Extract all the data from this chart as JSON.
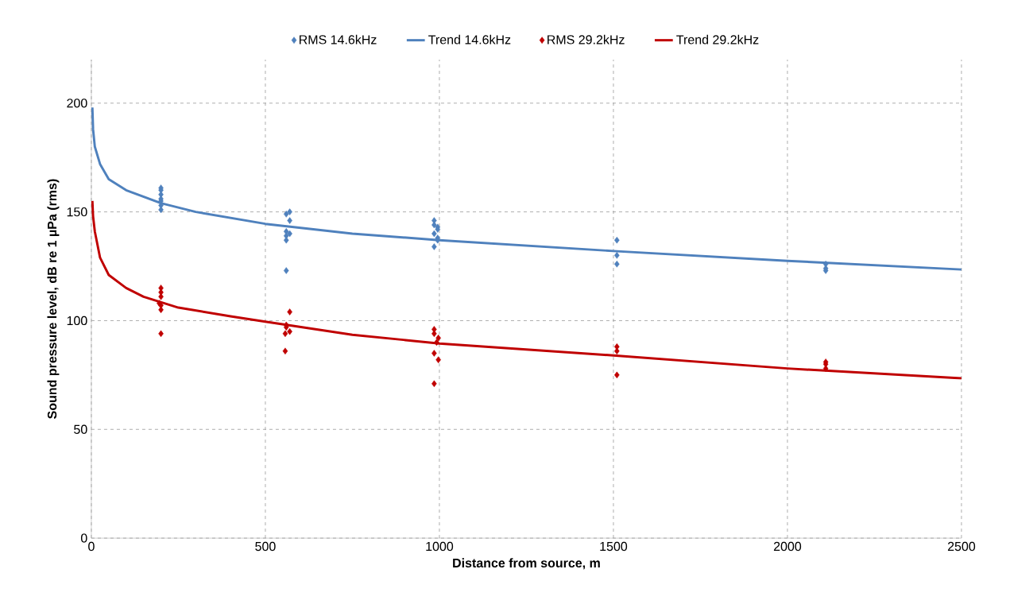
{
  "chart_data": {
    "type": "scatter",
    "xlabel": "Distance from source, m",
    "ylabel": "Sound pressure level, dB re 1 µPa (rms)",
    "xlim": [
      0,
      2500
    ],
    "ylim": [
      0,
      220
    ],
    "xticks": [
      0,
      500,
      1000,
      1500,
      2000,
      2500
    ],
    "yticks": [
      0,
      50,
      100,
      150,
      200
    ],
    "grid": true,
    "legend": "top",
    "series": [
      {
        "name": "RMS 14.6kHz",
        "marker": "diamond",
        "color": "#4f81bd",
        "x": [
          200,
          200,
          200,
          200,
          200,
          200,
          200,
          560,
          560,
          560,
          560,
          560,
          570,
          570,
          570,
          985,
          985,
          985,
          985,
          995,
          995,
          995,
          995,
          1510,
          1510,
          1510,
          2110,
          2110,
          2110
        ],
        "values": [
          161,
          160,
          158,
          156,
          155,
          153,
          151,
          149,
          141,
          139,
          137,
          123,
          150,
          146,
          140,
          146,
          144,
          140,
          134,
          143,
          142,
          138,
          137,
          137,
          130,
          126,
          126,
          124,
          123
        ]
      },
      {
        "name": "Trend 14.6kHz",
        "type": "line",
        "marker": "none",
        "line_style": "solid",
        "color": "#4f81bd",
        "x": [
          3,
          5,
          10,
          25,
          50,
          100,
          200,
          300,
          500,
          750,
          1000,
          1500,
          2000,
          2500
        ],
        "values": [
          198,
          188,
          180,
          172,
          165,
          160,
          154,
          150,
          144.5,
          140,
          137,
          132,
          127.5,
          123.5
        ]
      },
      {
        "name": "RMS 29.2kHz",
        "marker": "diamond",
        "color": "#c00000",
        "x": [
          200,
          200,
          200,
          195,
          200,
          200,
          200,
          570,
          560,
          560,
          570,
          557,
          557,
          985,
          985,
          997,
          992,
          985,
          997,
          985,
          1510,
          1510,
          1510,
          2110,
          2110,
          2110
        ],
        "values": [
          115,
          113,
          111,
          108,
          107,
          105,
          94,
          104,
          98,
          97,
          95,
          94,
          86,
          96,
          94,
          92,
          90,
          85,
          82,
          71,
          88,
          86,
          75,
          81,
          80,
          78
        ]
      },
      {
        "name": "Trend 29.2kHz",
        "type": "line",
        "marker": "none",
        "line_style": "solid",
        "color": "#c00000",
        "x": [
          3,
          5,
          10,
          25,
          50,
          100,
          150,
          250,
          400,
          500,
          750,
          1000,
          1500,
          2000,
          2500
        ],
        "values": [
          155,
          148,
          141,
          129,
          121,
          115,
          111,
          106,
          102,
          99.5,
          93.5,
          89.5,
          84,
          78,
          73.5
        ]
      }
    ]
  }
}
